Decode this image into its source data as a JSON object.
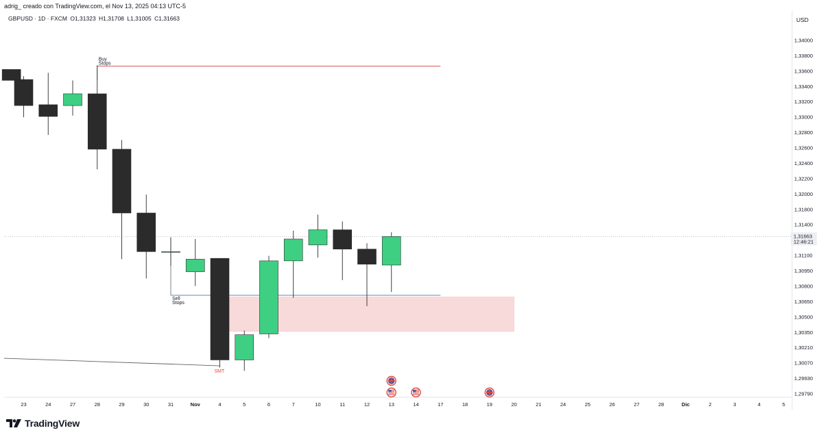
{
  "header": {
    "attribution": "adrig_ creado con TradingView.com, el Nov 13, 2025 04:13 UTC-5",
    "symbol": "GBPUSD · 1D · FXCM",
    "open": "O1,31323",
    "high": "H1,31708",
    "low": "L1,31005",
    "close": "C1,31663",
    "currency": "USD"
  },
  "brand": {
    "name": "TradingView",
    "icon": "tradingview-logo-icon"
  },
  "colors": {
    "up": "#3ecf83",
    "down": "#2b2b2b",
    "buy_line": "#e05858",
    "sell_line": "#3a7bbf",
    "zone": "#f8dadb",
    "smt": "#e0453c"
  },
  "chart_data": {
    "type": "candlestick",
    "title": "GBPUSD · 1D · FXCM",
    "ylim": [
      1.2965,
      1.3425
    ],
    "y_ticks": [
      "1,34000",
      "1,33800",
      "1,33600",
      "1,33400",
      "1,33200",
      "1,33000",
      "1,32800",
      "1,32600",
      "1,32400",
      "1,32200",
      "1,32000",
      "1,31800",
      "1,31400",
      "1,31250",
      "1,31100",
      "1,30950",
      "1,30800",
      "1,30650",
      "1,30500",
      "1,30350",
      "1,30210",
      "1,30070",
      "1,29930",
      "1,29790"
    ],
    "x_ticks": [
      "23",
      "24",
      "27",
      "28",
      "29",
      "30",
      "31",
      "Nov",
      "4",
      "5",
      "6",
      "7",
      "10",
      "11",
      "12",
      "13",
      "14",
      "17",
      "18",
      "19",
      "20",
      "21",
      "24",
      "25",
      "26",
      "27",
      "28",
      "Dic",
      "2",
      "3",
      "4",
      "5"
    ],
    "last_price": {
      "value": "1,31663",
      "countdown": "12:46:21"
    },
    "candles": [
      {
        "slot": -0.5,
        "o": 1.3365,
        "h": 1.3365,
        "l": 1.3352,
        "c": 1.3352
      },
      {
        "slot": 0,
        "o": 1.3353,
        "h": 1.3357,
        "l": 1.3308,
        "c": 1.3322
      },
      {
        "slot": 1,
        "o": 1.3323,
        "h": 1.3361,
        "l": 1.3287,
        "c": 1.3309
      },
      {
        "slot": 2,
        "o": 1.3322,
        "h": 1.3352,
        "l": 1.331,
        "c": 1.3336
      },
      {
        "slot": 3,
        "o": 1.3336,
        "h": 1.337,
        "l": 1.3246,
        "c": 1.327
      },
      {
        "slot": 4,
        "o": 1.327,
        "h": 1.3281,
        "l": 1.3139,
        "c": 1.3194
      },
      {
        "slot": 5,
        "o": 1.3194,
        "h": 1.3216,
        "l": 1.3116,
        "c": 1.3148
      },
      {
        "slot": 6,
        "o": 1.3148,
        "h": 1.3165,
        "l": 1.3131,
        "c": 1.3148
      },
      {
        "slot": 7,
        "o": 1.3124,
        "h": 1.3163,
        "l": 1.3107,
        "c": 1.3139
      },
      {
        "slot": 8,
        "o": 1.314,
        "h": 1.314,
        "l": 1.301,
        "c": 1.3019
      },
      {
        "slot": 9,
        "o": 1.3019,
        "h": 1.3054,
        "l": 1.3006,
        "c": 1.3049
      },
      {
        "slot": 10,
        "o": 1.305,
        "h": 1.3143,
        "l": 1.3045,
        "c": 1.3137
      },
      {
        "slot": 11,
        "o": 1.3137,
        "h": 1.3173,
        "l": 1.3093,
        "c": 1.3163
      },
      {
        "slot": 12,
        "o": 1.3156,
        "h": 1.3192,
        "l": 1.3141,
        "c": 1.3174
      },
      {
        "slot": 13,
        "o": 1.3174,
        "h": 1.3184,
        "l": 1.3114,
        "c": 1.3151
      },
      {
        "slot": 14,
        "o": 1.3151,
        "h": 1.3158,
        "l": 1.3083,
        "c": 1.3133
      },
      {
        "slot": 15,
        "o": 1.3132,
        "h": 1.3171,
        "l": 1.31,
        "c": 1.3166
      }
    ],
    "annotations": {
      "buy_stops": {
        "label_top": "Buy",
        "label_bottom": "Stops",
        "price": 1.3369,
        "from_slot": 3,
        "to_slot": 17
      },
      "sell_stops": {
        "label_top": "Sell",
        "label_bottom": "Stops",
        "price": 1.3096,
        "from_slot": 6,
        "to_slot": 17
      },
      "zone": {
        "top": 1.3094,
        "bottom": 1.3053,
        "from_slot": 8.4,
        "to_slot": 20
      },
      "smt": {
        "label": "SMT",
        "price": 1.3012,
        "slot": 8
      },
      "trendline": {
        "start_slot": -0.8,
        "start_price": 1.3021,
        "end_slot": 8,
        "end_price": 1.3012
      },
      "events": [
        {
          "slot": 15,
          "icon": "uk-flag-icon",
          "row": 0
        },
        {
          "slot": 15,
          "icon": "us-flag-icon",
          "row": 1
        },
        {
          "slot": 16,
          "icon": "us-flag-icon",
          "row": 1
        },
        {
          "slot": 19,
          "icon": "uk-flag-icon",
          "row": 1
        }
      ]
    }
  }
}
